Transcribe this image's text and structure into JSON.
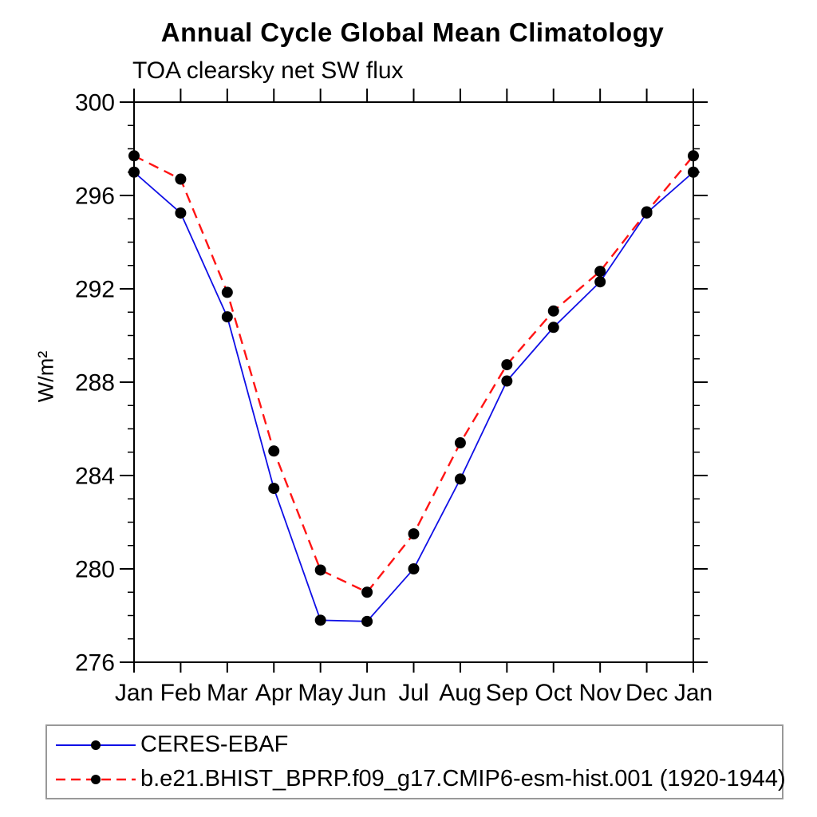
{
  "chart_data": {
    "type": "line",
    "title": "Annual Cycle Global Mean Climatology",
    "subtitle": "TOA clearsky net SW flux",
    "xlabel": "",
    "ylabel": "W/m²",
    "categories": [
      "Jan",
      "Feb",
      "Mar",
      "Apr",
      "May",
      "Jun",
      "Jul",
      "Aug",
      "Sep",
      "Oct",
      "Nov",
      "Dec",
      "Jan"
    ],
    "ylim": [
      276,
      300
    ],
    "ytick_major": [
      276,
      280,
      284,
      288,
      292,
      296,
      300
    ],
    "ytick_minor_step": 1,
    "grid": false,
    "legend_position": "bottom",
    "axis_color": "#000000",
    "marker_color": "#000000",
    "series": [
      {
        "name": "CERES-EBAF",
        "color": "#0f0fe6",
        "style": "solid",
        "marker": "circle",
        "values": [
          297.0,
          295.25,
          290.8,
          283.45,
          277.8,
          277.75,
          280.0,
          283.85,
          288.05,
          290.35,
          292.3,
          295.25,
          297.0
        ]
      },
      {
        "name": "b.e21.BHIST_BPRP.f09_g17.CMIP6-esm-hist.001 (1920-1944)",
        "color": "#ff1414",
        "style": "dashed",
        "marker": "circle",
        "values": [
          297.7,
          296.7,
          291.85,
          285.05,
          279.95,
          279.0,
          281.5,
          285.4,
          288.75,
          291.05,
          292.75,
          295.3,
          297.7
        ]
      }
    ]
  }
}
